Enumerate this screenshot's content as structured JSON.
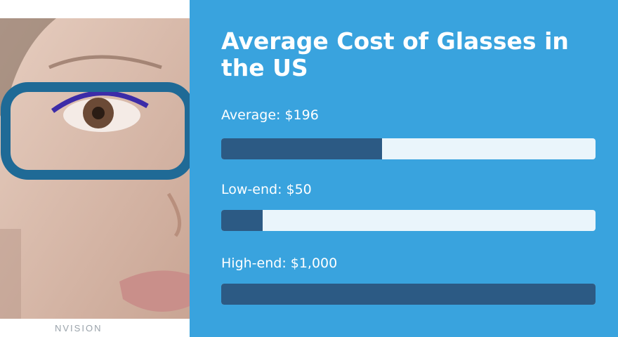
{
  "brand": {
    "logo_text": "NVISION"
  },
  "colors": {
    "panel": "#39a3de",
    "bar_fill": "#2c5a84",
    "bar_track": "#eaf5fb",
    "frame": "#1f6a96"
  },
  "photo": {
    "subject": "woman-with-blue-glasses"
  },
  "chart_data": {
    "type": "bar",
    "title": "Average Cost of Glasses in the US",
    "orientation": "horizontal",
    "xlim": [
      0,
      1000
    ],
    "bars": [
      {
        "label": "Average: $196",
        "value": 196
      },
      {
        "label": "Low-end: $50",
        "value": 50
      },
      {
        "label": "High-end: $1,000",
        "value": 1000
      }
    ]
  }
}
